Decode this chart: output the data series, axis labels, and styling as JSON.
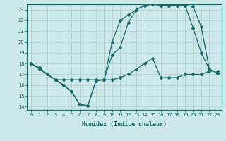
{
  "xlabel": "Humidex (Indice chaleur)",
  "bg_color": "#cce8e8",
  "grid_color": "#b0cccc",
  "line_color": "#1a6868",
  "xlim": [
    -0.5,
    23.5
  ],
  "ylim": [
    13.7,
    23.5
  ],
  "xticks": [
    0,
    1,
    2,
    3,
    4,
    5,
    6,
    7,
    8,
    9,
    10,
    11,
    12,
    13,
    14,
    15,
    16,
    17,
    18,
    19,
    20,
    21,
    22,
    23
  ],
  "yticks": [
    14,
    15,
    16,
    17,
    18,
    19,
    20,
    21,
    22,
    23
  ],
  "line1_x": [
    0,
    1,
    2,
    3,
    4,
    5,
    6,
    7,
    8,
    9,
    10,
    11,
    12,
    13,
    14,
    15,
    16,
    17,
    18,
    19,
    20,
    21,
    22,
    23
  ],
  "line1_y": [
    18,
    17.6,
    17.0,
    16.5,
    16.0,
    15.4,
    14.2,
    14.1,
    16.4,
    16.5,
    18.8,
    19.5,
    21.8,
    23.0,
    23.4,
    23.5,
    23.4,
    23.4,
    23.4,
    23.4,
    23.3,
    21.4,
    17.5,
    17.1
  ],
  "line2_x": [
    0,
    1,
    2,
    3,
    4,
    5,
    6,
    7,
    8,
    9,
    10,
    11,
    12,
    13,
    14,
    15,
    16,
    17,
    18,
    19,
    20,
    21,
    22,
    23
  ],
  "line2_y": [
    18,
    17.6,
    17.0,
    16.5,
    16.0,
    15.4,
    14.2,
    14.1,
    16.4,
    16.5,
    20.0,
    22.0,
    22.5,
    23.0,
    23.4,
    23.5,
    23.4,
    23.4,
    23.4,
    23.4,
    21.3,
    19.0,
    17.5,
    17.1
  ],
  "line3_x": [
    0,
    1,
    2,
    3,
    4,
    5,
    6,
    7,
    8,
    9,
    10,
    11,
    12,
    13,
    14,
    15,
    16,
    17,
    18,
    19,
    20,
    21,
    22,
    23
  ],
  "line3_y": [
    18,
    17.5,
    17.0,
    16.5,
    16.5,
    16.5,
    16.5,
    16.5,
    16.5,
    16.5,
    16.5,
    16.7,
    17.0,
    17.5,
    18.0,
    18.5,
    16.7,
    16.7,
    16.7,
    17.0,
    17.0,
    17.0,
    17.3,
    17.3
  ]
}
